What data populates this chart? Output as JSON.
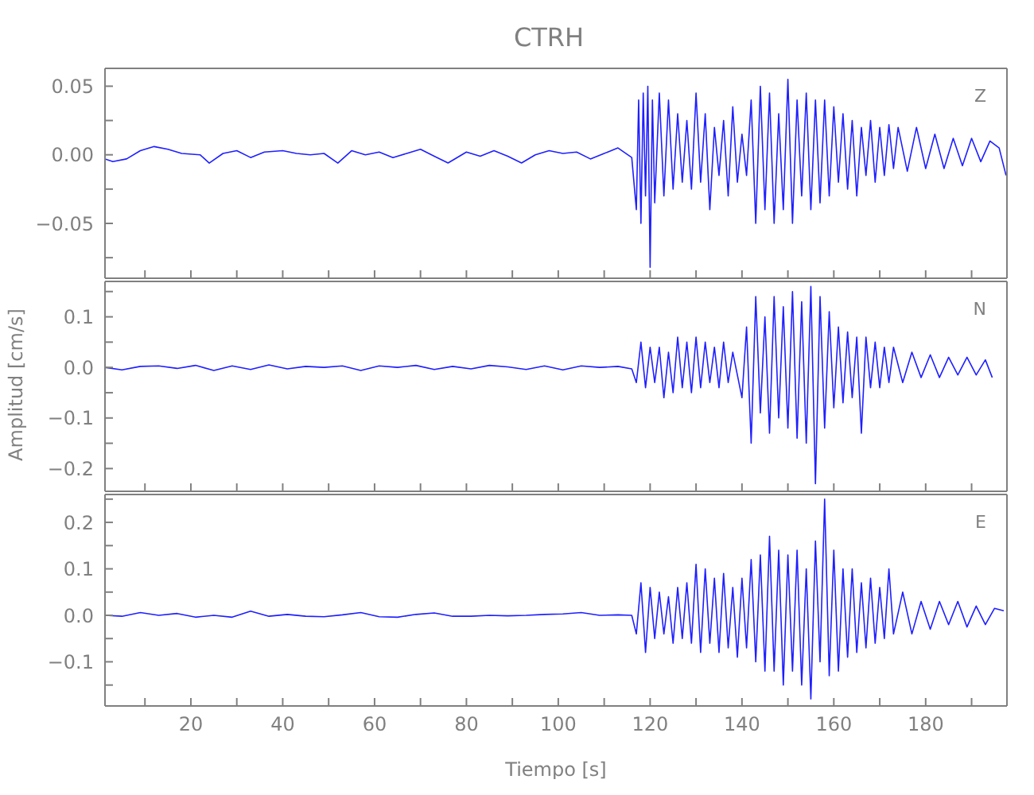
{
  "chart_data": [
    {
      "type": "line",
      "title": "CTRH",
      "annotations": [
        "Z"
      ],
      "tick_labels": "y",
      "xlim": [
        1.3,
        197.7
      ],
      "xticks": [
        {
          "value": 10,
          "label": null
        },
        20,
        {
          "value": 30,
          "label": null
        },
        40,
        {
          "value": 50,
          "label": null
        },
        60,
        {
          "value": 70,
          "label": null
        },
        80,
        {
          "value": 90,
          "label": null
        },
        100,
        {
          "value": 110,
          "label": null
        },
        120,
        {
          "value": 130,
          "label": null
        },
        140,
        {
          "value": 150,
          "label": null
        },
        160,
        {
          "value": 170,
          "label": null
        },
        180,
        {
          "value": 190,
          "label": null
        }
      ],
      "ylim": [
        -0.09,
        0.063
      ],
      "yticks": [
        {
          "value": -0.075,
          "label": null
        },
        {
          "value": -0.05,
          "label": "−0.05"
        },
        {
          "value": -0.025,
          "label": null
        },
        {
          "value": 0,
          "label": "0.00"
        },
        {
          "value": 0.025,
          "label": null
        },
        {
          "value": 0.05,
          "label": "0.05"
        }
      ],
      "grid": false,
      "marker": "none",
      "series": [
        {
          "color": "#1f1fff",
          "x": [
            1.3,
            3,
            6,
            9,
            12,
            15,
            18,
            22,
            24,
            27,
            30,
            33,
            36,
            40,
            43,
            46,
            49,
            52,
            55,
            58,
            61,
            64,
            67,
            70,
            73,
            76,
            80,
            83,
            86,
            89,
            92,
            95,
            98,
            101,
            104,
            107,
            110,
            113,
            116,
            117,
            117.5,
            118,
            118.5,
            119,
            119.5,
            120,
            120.5,
            121,
            122,
            123,
            124,
            125,
            126,
            127,
            128,
            129,
            130,
            131,
            132,
            133,
            134,
            135,
            136,
            137,
            138,
            139,
            140,
            141,
            142,
            143,
            144,
            145,
            146,
            147,
            148,
            149,
            150,
            151,
            152,
            153,
            154,
            155,
            156,
            157,
            158,
            159,
            160,
            161,
            162,
            163,
            164,
            165,
            166,
            167,
            168,
            169,
            170,
            171,
            172,
            173,
            174,
            176,
            178,
            180,
            182,
            184,
            186,
            188,
            190,
            192,
            194,
            196,
            197.5
          ],
          "values": [
            -0.003,
            -0.005,
            -0.003,
            0.003,
            0.006,
            0.004,
            0.001,
            0,
            -0.006,
            0.001,
            0.003,
            -0.002,
            0.002,
            0.003,
            0.001,
            0,
            0.001,
            -0.006,
            0.003,
            0,
            0.002,
            -0.002,
            0.001,
            0.004,
            -0.001,
            -0.006,
            0.002,
            -0.001,
            0.003,
            -0.001,
            -0.006,
            0,
            0.003,
            0.001,
            0.002,
            -0.003,
            0.001,
            0.005,
            -0.002,
            -0.04,
            0.04,
            -0.05,
            0.045,
            -0.03,
            0.05,
            -0.082,
            0.04,
            -0.035,
            0.045,
            -0.03,
            0.04,
            -0.025,
            0.03,
            -0.02,
            0.025,
            -0.025,
            0.045,
            -0.02,
            0.03,
            -0.04,
            0.02,
            -0.015,
            0.025,
            -0.03,
            0.035,
            -0.02,
            0.015,
            -0.015,
            0.04,
            -0.05,
            0.05,
            -0.04,
            0.045,
            -0.05,
            0.03,
            -0.04,
            0.055,
            -0.05,
            0.04,
            -0.03,
            0.045,
            -0.04,
            0.04,
            -0.035,
            0.04,
            -0.03,
            0.035,
            -0.02,
            0.03,
            -0.025,
            0.025,
            -0.03,
            0.02,
            -0.015,
            0.025,
            -0.02,
            0.02,
            -0.015,
            0.022,
            -0.01,
            0.02,
            -0.012,
            0.02,
            -0.01,
            0.015,
            -0.01,
            0.012,
            -0.008,
            0.012,
            -0.005,
            0.01,
            0.005,
            -0.015
          ]
        }
      ]
    },
    {
      "type": "line",
      "annotations": [
        "N"
      ],
      "ylabel": "Amplitud [cm/s]",
      "tick_labels": "y",
      "xlim": [
        1.3,
        197.7
      ],
      "xticks": [
        {
          "value": 10,
          "label": null
        },
        20,
        {
          "value": 30,
          "label": null
        },
        40,
        {
          "value": 50,
          "label": null
        },
        60,
        {
          "value": 70,
          "label": null
        },
        80,
        {
          "value": 90,
          "label": null
        },
        100,
        {
          "value": 110,
          "label": null
        },
        120,
        {
          "value": 130,
          "label": null
        },
        140,
        {
          "value": 150,
          "label": null
        },
        160,
        {
          "value": 170,
          "label": null
        },
        180,
        {
          "value": 190,
          "label": null
        }
      ],
      "ylim": [
        -0.245,
        0.17
      ],
      "yticks": [
        {
          "value": -0.2,
          "label": "−0.2"
        },
        {
          "value": -0.15,
          "label": null
        },
        {
          "value": -0.1,
          "label": "−0.1"
        },
        {
          "value": -0.05,
          "label": null
        },
        {
          "value": 0,
          "label": "0.0"
        },
        {
          "value": 0.05,
          "label": null
        },
        {
          "value": 0.1,
          "label": "0.1"
        },
        {
          "value": 0.15,
          "label": null
        }
      ],
      "grid": false,
      "marker": "none",
      "series": [
        {
          "color": "#1f1fff",
          "x": [
            1.3,
            5,
            9,
            13,
            17,
            21,
            25,
            29,
            33,
            37,
            41,
            45,
            49,
            53,
            57,
            61,
            65,
            69,
            73,
            77,
            81,
            85,
            89,
            93,
            97,
            101,
            105,
            109,
            113,
            116,
            117,
            118,
            119,
            120,
            121,
            122,
            123,
            124,
            125,
            126,
            127,
            128,
            129,
            130,
            131,
            132,
            133,
            134,
            135,
            136,
            137,
            138,
            140,
            141,
            142,
            143,
            144,
            145,
            146,
            147,
            148,
            149,
            150,
            151,
            152,
            153,
            154,
            155,
            156,
            157,
            158,
            159,
            160,
            161,
            162,
            163,
            164,
            165,
            166,
            167,
            168,
            169,
            170,
            171,
            172,
            173,
            175,
            177,
            179,
            181,
            183,
            185,
            187,
            189,
            191,
            193,
            194.5
          ],
          "values": [
            0,
            -0.005,
            0.002,
            0.003,
            -0.002,
            0.004,
            -0.006,
            0.003,
            -0.004,
            0.005,
            -0.003,
            0.002,
            0,
            0.003,
            -0.006,
            0.003,
            0,
            0.004,
            -0.004,
            0.002,
            -0.003,
            0.004,
            0.001,
            -0.004,
            0.003,
            -0.005,
            0.003,
            0,
            0.002,
            -0.003,
            -0.03,
            0.05,
            -0.04,
            0.04,
            -0.03,
            0.04,
            -0.06,
            0.03,
            -0.05,
            0.06,
            -0.04,
            0.05,
            -0.05,
            0.06,
            -0.04,
            0.05,
            -0.03,
            0.04,
            -0.04,
            0.05,
            -0.03,
            0.03,
            -0.06,
            0.08,
            -0.15,
            0.14,
            -0.09,
            0.1,
            -0.13,
            0.14,
            -0.1,
            0.12,
            -0.12,
            0.15,
            -0.14,
            0.13,
            -0.15,
            0.16,
            -0.23,
            0.14,
            -0.12,
            0.11,
            -0.08,
            0.08,
            -0.07,
            0.07,
            -0.06,
            0.06,
            -0.13,
            0.06,
            -0.04,
            0.05,
            -0.04,
            0.04,
            -0.03,
            0.04,
            -0.03,
            0.03,
            -0.02,
            0.025,
            -0.02,
            0.02,
            -0.015,
            0.02,
            -0.015,
            0.015,
            -0.02
          ]
        }
      ]
    },
    {
      "type": "line",
      "annotations": [
        "E"
      ],
      "xlabel": "Tiempo [s]",
      "xlim": [
        1.3,
        197.7
      ],
      "xticks": [
        {
          "value": 10,
          "label": null
        },
        20,
        {
          "value": 30,
          "label": null
        },
        40,
        {
          "value": 50,
          "label": null
        },
        60,
        {
          "value": 70,
          "label": null
        },
        80,
        {
          "value": 90,
          "label": null
        },
        100,
        {
          "value": 110,
          "label": null
        },
        120,
        {
          "value": 130,
          "label": null
        },
        140,
        {
          "value": 150,
          "label": null
        },
        160,
        {
          "value": 170,
          "label": null
        },
        180,
        {
          "value": 190,
          "label": null
        }
      ],
      "ylim": [
        -0.195,
        0.26
      ],
      "yticks": [
        {
          "value": -0.15,
          "label": null
        },
        {
          "value": -0.1,
          "label": "−0.1"
        },
        {
          "value": -0.05,
          "label": null
        },
        {
          "value": 0,
          "label": "0.0"
        },
        {
          "value": 0.05,
          "label": null
        },
        {
          "value": 0.1,
          "label": "0.1"
        },
        {
          "value": 0.15,
          "label": null
        },
        {
          "value": 0.2,
          "label": "0.2"
        },
        {
          "value": 0.25,
          "label": null
        }
      ],
      "grid": false,
      "marker": "none",
      "series": [
        {
          "color": "#1f1fff",
          "x": [
            1.3,
            5,
            9,
            13,
            17,
            21,
            25,
            29,
            33,
            37,
            41,
            45,
            49,
            53,
            57,
            61,
            65,
            69,
            73,
            77,
            81,
            85,
            89,
            93,
            97,
            101,
            105,
            109,
            113,
            116,
            117,
            118,
            119,
            120,
            121,
            122,
            123,
            124,
            125,
            126,
            127,
            128,
            129,
            130,
            131,
            132,
            133,
            134,
            135,
            136,
            137,
            138,
            139,
            140,
            141,
            142,
            143,
            144,
            145,
            146,
            147,
            148,
            149,
            150,
            151,
            152,
            153,
            154,
            155,
            156,
            157,
            158,
            159,
            160,
            161,
            162,
            163,
            164,
            165,
            166,
            167,
            168,
            169,
            170,
            171,
            172,
            173,
            175,
            177,
            179,
            181,
            183,
            185,
            187,
            189,
            191,
            193,
            195,
            197
          ],
          "values": [
            0,
            -0.002,
            0.006,
            0,
            0.004,
            -0.004,
            0,
            -0.004,
            0.009,
            -0.002,
            0.002,
            -0.002,
            -0.003,
            0.001,
            0.006,
            -0.003,
            -0.004,
            0.002,
            0.005,
            -0.002,
            -0.002,
            0,
            -0.001,
            0,
            0.002,
            0.003,
            0.006,
            0,
            0.001,
            0,
            -0.04,
            0.07,
            -0.08,
            0.06,
            -0.05,
            0.05,
            -0.04,
            0.04,
            -0.06,
            0.06,
            -0.05,
            0.07,
            -0.06,
            0.11,
            -0.08,
            0.1,
            -0.06,
            0.08,
            -0.08,
            0.09,
            -0.07,
            0.06,
            -0.09,
            0.08,
            -0.07,
            0.12,
            -0.1,
            0.13,
            -0.12,
            0.17,
            -0.12,
            0.14,
            -0.15,
            0.13,
            -0.12,
            0.14,
            -0.15,
            0.1,
            -0.18,
            0.16,
            -0.1,
            0.25,
            -0.13,
            0.14,
            -0.12,
            0.1,
            -0.09,
            0.1,
            -0.08,
            0.07,
            -0.07,
            0.08,
            -0.06,
            0.06,
            -0.05,
            0.1,
            -0.04,
            0.05,
            -0.04,
            0.03,
            -0.03,
            0.03,
            -0.02,
            0.03,
            -0.025,
            0.02,
            -0.02,
            0.015,
            0.01
          ]
        }
      ]
    }
  ]
}
